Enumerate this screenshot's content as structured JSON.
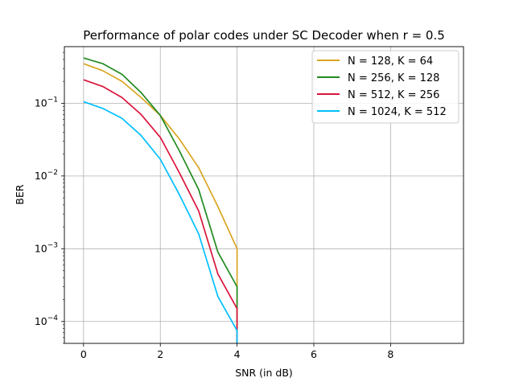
{
  "chart_data": {
    "type": "line",
    "title": "Performance of polar codes under SC Decoder when r = 0.5",
    "xlabel": "SNR (in dB)",
    "ylabel": "BER",
    "xlim": [
      -0.5,
      9.9
    ],
    "ylim": [
      5e-05,
      0.6
    ],
    "yscale": "log",
    "grid": true,
    "legend_position": "top-right",
    "x_ticks": [
      0,
      2,
      4,
      6,
      8
    ],
    "x_tick_labels": [
      "0",
      "2",
      "4",
      "6",
      "8"
    ],
    "y_ticks": [
      0.0001,
      0.001,
      0.01,
      0.1
    ],
    "y_tick_labels": [
      {
        "base": "10",
        "exp": "−4"
      },
      {
        "base": "10",
        "exp": "−3"
      },
      {
        "base": "10",
        "exp": "−2"
      },
      {
        "base": "10",
        "exp": "−1"
      }
    ],
    "x": [
      0,
      0.5,
      1,
      1.5,
      2,
      2.5,
      3,
      3.5,
      4
    ],
    "series": [
      {
        "name": "N = 128, K = 64",
        "color": "#daa520",
        "values": [
          0.35,
          0.28,
          0.2,
          0.12,
          0.068,
          0.032,
          0.013,
          0.0038,
          0.001
        ]
      },
      {
        "name": "N = 256, K = 128",
        "color": "#228b22",
        "values": [
          0.42,
          0.35,
          0.25,
          0.14,
          0.068,
          0.022,
          0.0065,
          0.0009,
          0.0003
        ]
      },
      {
        "name": "N = 512, K = 256",
        "color": "#dc143c",
        "values": [
          0.21,
          0.17,
          0.12,
          0.07,
          0.034,
          0.011,
          0.0033,
          0.00045,
          0.00015
        ]
      },
      {
        "name": "N = 1024, K = 512",
        "color": "#00bfff",
        "values": [
          0.105,
          0.085,
          0.062,
          0.036,
          0.017,
          0.0055,
          0.0016,
          0.00022,
          7.5e-05
        ]
      }
    ]
  }
}
